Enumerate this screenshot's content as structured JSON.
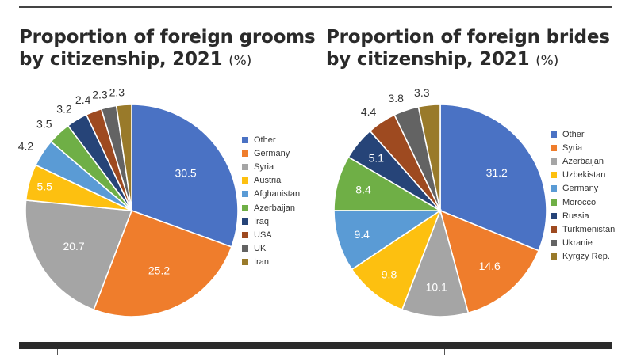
{
  "colors": [
    "#4a72c4",
    "#ef7d2c",
    "#a5a5a5",
    "#fdc010",
    "#5a9bd5",
    "#6faf46",
    "#264478",
    "#9e4a20",
    "#636363",
    "#997a2a"
  ],
  "chart_data": [
    {
      "type": "pie",
      "title": "Proportion of foreign grooms by citizenship, 2021",
      "title_line1": "Proportion of foreign grooms",
      "title_line2": "by citizenship, 2021",
      "unit": "(%)",
      "categories": [
        "Other",
        "Germany",
        "Syria",
        "Austria",
        "Afghanistan",
        "Azerbaijan",
        "Iraq",
        "USA",
        "UK",
        "Iran"
      ],
      "values": [
        30.5,
        25.2,
        20.7,
        5.5,
        4.2,
        3.5,
        3.2,
        2.4,
        2.3,
        2.3
      ],
      "labels": [
        "30.5",
        "25.2",
        "20.7",
        "5.5",
        "4.2",
        "3.5",
        "3.2",
        "2.4",
        "2.3",
        "2.3"
      ],
      "legend": "right"
    },
    {
      "type": "pie",
      "title": "Proportion of foreign brides by citizenship, 2021",
      "title_line1": "Proportion of foreign brides",
      "title_line2": "by citizenship, 2021",
      "unit": "(%)",
      "categories": [
        "Other",
        "Syria",
        "Azerbaijan",
        "Uzbekistan",
        "Germany",
        "Morocco",
        "Russia",
        "Turkmenistan",
        "Ukranie",
        "Kyrgzy Rep."
      ],
      "values": [
        31.2,
        14.6,
        10.1,
        9.8,
        9.4,
        8.4,
        5.1,
        4.4,
        3.8,
        3.3
      ],
      "labels": [
        "31.2",
        "14.6",
        "10.1",
        "9.8",
        "9.4",
        "8.4",
        "5.1",
        "4.4",
        "3.8",
        "3.3"
      ],
      "legend": "right"
    }
  ]
}
